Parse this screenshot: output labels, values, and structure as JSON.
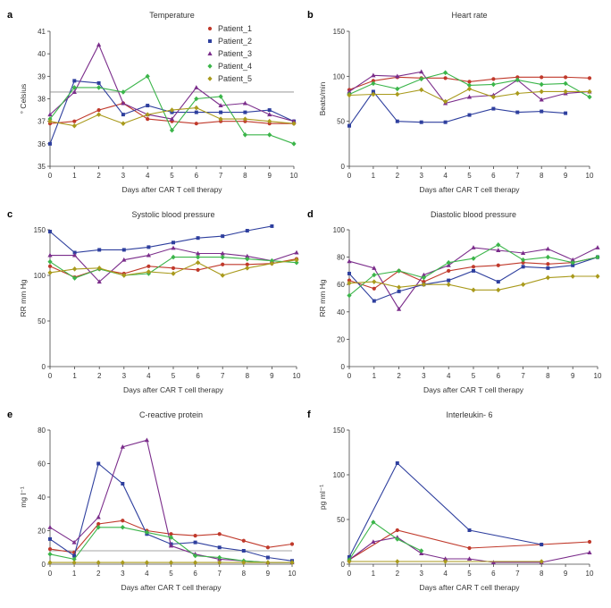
{
  "legend": {
    "entries": [
      "Patient_1",
      "Patient_2",
      "Patient_3",
      "Patient_4",
      "Patient_5"
    ],
    "colors": [
      "#c0392b",
      "#2e3f9e",
      "#7b2d8b",
      "#3bb54a",
      "#a99a1c"
    ],
    "markers": [
      "circle",
      "square",
      "triangle",
      "diamond",
      "diamond"
    ]
  },
  "chart_data": [
    {
      "id": "a",
      "letter": "a",
      "type": "line",
      "title": "Temperature",
      "xlabel": "Days after CAR T cell therapy",
      "ylabel": "° Celsius",
      "xlim": [
        0,
        10
      ],
      "ylim": [
        35,
        41
      ],
      "xticks": [
        0,
        1,
        2,
        3,
        4,
        5,
        6,
        7,
        8,
        9,
        10
      ],
      "yticks": [
        35,
        36,
        37,
        38,
        39,
        40,
        41
      ],
      "threshold": 38.3,
      "series": [
        {
          "name": "Patient_1",
          "x": [
            0,
            1,
            2,
            3,
            4,
            5,
            6,
            7,
            8,
            9,
            10
          ],
          "values": [
            36.9,
            37.0,
            37.5,
            37.8,
            37.1,
            37.0,
            36.9,
            37.0,
            37.0,
            36.9,
            36.9
          ]
        },
        {
          "name": "Patient_2",
          "x": [
            0,
            1,
            2,
            3,
            4,
            5,
            6,
            7,
            8,
            9,
            10
          ],
          "values": [
            36.0,
            38.8,
            38.7,
            37.3,
            37.7,
            37.4,
            37.4,
            37.4,
            37.4,
            37.5,
            37.0
          ]
        },
        {
          "name": "Patient_3",
          "x": [
            0,
            1,
            2,
            3,
            4,
            5,
            6,
            7,
            8,
            9,
            10
          ],
          "values": [
            37.3,
            38.3,
            40.4,
            37.8,
            37.3,
            37.1,
            38.5,
            37.7,
            37.8,
            37.3,
            37.0
          ]
        },
        {
          "name": "Patient_4",
          "x": [
            0,
            1,
            2,
            3,
            4,
            5,
            6,
            7,
            8,
            9,
            10
          ],
          "values": [
            37.1,
            38.5,
            38.5,
            38.3,
            39.0,
            36.6,
            38.0,
            38.1,
            36.4,
            36.4,
            36.0
          ]
        },
        {
          "name": "Patient_5",
          "x": [
            0,
            1,
            2,
            3,
            4,
            5,
            6,
            7,
            8,
            9,
            10
          ],
          "values": [
            37.0,
            36.8,
            37.3,
            36.9,
            37.3,
            37.5,
            37.6,
            37.1,
            37.1,
            37.0,
            36.9
          ]
        }
      ]
    },
    {
      "id": "b",
      "letter": "b",
      "type": "line",
      "title": "Heart rate",
      "xlabel": "Days after CAR T cell therapy",
      "ylabel": "Beats/min",
      "xlim": [
        0,
        10
      ],
      "ylim": [
        0,
        150
      ],
      "xticks": [
        0,
        1,
        2,
        3,
        4,
        5,
        6,
        7,
        8,
        9,
        10
      ],
      "yticks": [
        0,
        50,
        100,
        150
      ],
      "series": [
        {
          "name": "Patient_1",
          "x": [
            0,
            1,
            2,
            3,
            4,
            5,
            6,
            7,
            8,
            9,
            10
          ],
          "values": [
            85,
            95,
            99,
            98,
            98,
            94,
            97,
            99,
            99,
            99,
            98
          ]
        },
        {
          "name": "Patient_2",
          "x": [
            0,
            1,
            2,
            3,
            4,
            5,
            6,
            7,
            8,
            9
          ],
          "values": [
            45,
            83,
            50,
            49,
            49,
            57,
            64,
            60,
            61,
            59
          ]
        },
        {
          "name": "Patient_3",
          "x": [
            0,
            1,
            2,
            3,
            4,
            5,
            6,
            7,
            8,
            9,
            10
          ],
          "values": [
            83,
            101,
            100,
            105,
            70,
            77,
            79,
            96,
            74,
            81,
            83
          ]
        },
        {
          "name": "Patient_4",
          "x": [
            0,
            1,
            2,
            3,
            4,
            5,
            6,
            7,
            8,
            9,
            10
          ],
          "values": [
            80,
            92,
            86,
            97,
            104,
            90,
            91,
            96,
            91,
            92,
            77
          ]
        },
        {
          "name": "Patient_5",
          "x": [
            0,
            1,
            2,
            3,
            4,
            5,
            6,
            7,
            8,
            9,
            10
          ],
          "values": [
            79,
            80,
            80,
            85,
            72,
            86,
            77,
            81,
            83,
            83,
            83
          ]
        }
      ]
    },
    {
      "id": "c",
      "letter": "c",
      "type": "line",
      "title": "Systolic blood pressure",
      "xlabel": "Days after CAR T cell therapy",
      "ylabel": "RR mm Hg",
      "xlim": [
        0,
        10
      ],
      "ylim": [
        0,
        150
      ],
      "xticks": [
        0,
        1,
        2,
        3,
        4,
        5,
        6,
        7,
        8,
        9,
        10
      ],
      "yticks": [
        0,
        50,
        100,
        150
      ],
      "series": [
        {
          "name": "Patient_1",
          "x": [
            0,
            1,
            2,
            3,
            4,
            5,
            6,
            7,
            8,
            9,
            10
          ],
          "values": [
            110,
            98,
            107,
            102,
            110,
            108,
            106,
            112,
            112,
            113,
            118
          ]
        },
        {
          "name": "Patient_2",
          "x": [
            0,
            1,
            2,
            3,
            4,
            5,
            6,
            7,
            8,
            9
          ],
          "values": [
            148,
            125,
            128,
            128,
            131,
            136,
            141,
            143,
            149,
            154
          ]
        },
        {
          "name": "Patient_3",
          "x": [
            0,
            1,
            2,
            3,
            4,
            5,
            6,
            7,
            8,
            9,
            10
          ],
          "values": [
            122,
            122,
            93,
            117,
            122,
            130,
            124,
            124,
            121,
            116,
            125
          ]
        },
        {
          "name": "Patient_4",
          "x": [
            0,
            1,
            2,
            3,
            4,
            5,
            6,
            7,
            8,
            9,
            10
          ],
          "values": [
            115,
            97,
            107,
            100,
            102,
            120,
            120,
            120,
            118,
            116,
            114
          ]
        },
        {
          "name": "Patient_5",
          "x": [
            0,
            1,
            2,
            3,
            4,
            5,
            6,
            7,
            8,
            9,
            10
          ],
          "values": [
            103,
            107,
            108,
            100,
            104,
            102,
            114,
            100,
            108,
            113,
            117
          ]
        }
      ]
    },
    {
      "id": "d",
      "letter": "d",
      "type": "line",
      "title": "Diastolic blood pressure",
      "xlabel": "Days after CAR T cell therapy",
      "ylabel": "RR mm Hg",
      "xlim": [
        0,
        10
      ],
      "ylim": [
        0,
        100
      ],
      "xticks": [
        0,
        1,
        2,
        3,
        4,
        5,
        6,
        7,
        8,
        9,
        10
      ],
      "yticks": [
        0,
        20,
        40,
        60,
        80,
        100
      ],
      "series": [
        {
          "name": "Patient_1",
          "x": [
            0,
            1,
            2,
            3,
            4,
            5,
            6,
            7,
            8,
            9,
            10
          ],
          "values": [
            63,
            57,
            70,
            62,
            70,
            73,
            74,
            76,
            75,
            76,
            80
          ]
        },
        {
          "name": "Patient_2",
          "x": [
            0,
            1,
            2,
            3,
            4,
            5,
            6,
            7,
            8,
            9,
            10
          ],
          "values": [
            68,
            48,
            55,
            60,
            63,
            70,
            62,
            73,
            72,
            74,
            80
          ]
        },
        {
          "name": "Patient_3",
          "x": [
            0,
            1,
            2,
            3,
            4,
            5,
            6,
            7,
            8,
            9,
            10
          ],
          "values": [
            77,
            72,
            42,
            67,
            74,
            87,
            85,
            83,
            86,
            78,
            87
          ]
        },
        {
          "name": "Patient_4",
          "x": [
            0,
            1,
            2,
            3,
            4,
            5,
            6,
            7,
            8,
            9,
            10
          ],
          "values": [
            52,
            67,
            70,
            65,
            76,
            79,
            89,
            78,
            80,
            76,
            80
          ]
        },
        {
          "name": "Patient_5",
          "x": [
            0,
            1,
            2,
            3,
            4,
            5,
            6,
            7,
            8,
            9,
            10
          ],
          "values": [
            61,
            62,
            58,
            60,
            60,
            56,
            56,
            60,
            65,
            66,
            66
          ]
        }
      ]
    },
    {
      "id": "e",
      "letter": "e",
      "type": "line",
      "title": "C-reactive protein",
      "xlabel": "Days after CAR T cell therapy",
      "ylabel": "mg l⁻¹",
      "xlim": [
        0,
        10
      ],
      "ylim": [
        0,
        80
      ],
      "xticks": [
        0,
        1,
        2,
        3,
        4,
        5,
        6,
        7,
        8,
        9,
        10
      ],
      "yticks": [
        0,
        20,
        40,
        60,
        80
      ],
      "threshold": 8,
      "series": [
        {
          "name": "Patient_1",
          "x": [
            0,
            1,
            2,
            3,
            4,
            5,
            6,
            7,
            8,
            9,
            10
          ],
          "values": [
            9,
            7,
            24,
            26,
            20,
            18,
            17,
            18,
            14,
            10,
            12
          ]
        },
        {
          "name": "Patient_2",
          "x": [
            0,
            1,
            2,
            3,
            4,
            5,
            6,
            7,
            8,
            9,
            10
          ],
          "values": [
            15,
            5,
            60,
            48,
            18,
            12,
            13,
            10,
            8,
            4,
            2
          ]
        },
        {
          "name": "Patient_3",
          "x": [
            0,
            1,
            2,
            3,
            4,
            5,
            6,
            7,
            8,
            9,
            10
          ],
          "values": [
            22,
            13,
            28,
            70,
            74,
            11,
            6,
            3,
            2,
            1,
            1
          ]
        },
        {
          "name": "Patient_4",
          "x": [
            0,
            1,
            2,
            3,
            4,
            5,
            6,
            7,
            8,
            9,
            10
          ],
          "values": [
            6,
            3,
            22,
            22,
            19,
            16,
            5,
            4,
            2,
            1,
            1
          ]
        },
        {
          "name": "Patient_5",
          "x": [
            0,
            1,
            2,
            3,
            4,
            5,
            6,
            7,
            8,
            9,
            10
          ],
          "values": [
            1,
            1,
            1,
            1,
            1,
            1,
            1,
            1,
            1,
            1,
            1
          ]
        }
      ]
    },
    {
      "id": "f",
      "letter": "f",
      "type": "line",
      "title": "Interleukin- 6",
      "xlabel": "Days after CAR T cell therapy",
      "ylabel": "pg ml⁻¹",
      "xlim": [
        0,
        10
      ],
      "ylim": [
        0,
        150
      ],
      "xticks": [
        0,
        1,
        2,
        3,
        4,
        5,
        6,
        7,
        8,
        9,
        10
      ],
      "yticks": [
        0,
        50,
        100,
        150
      ],
      "series": [
        {
          "name": "Patient_1",
          "x": [
            0,
            2,
            5,
            8,
            10
          ],
          "values": [
            5,
            38,
            18,
            22,
            25
          ]
        },
        {
          "name": "Patient_2",
          "x": [
            0,
            2,
            5,
            8
          ],
          "values": [
            8,
            113,
            38,
            22
          ]
        },
        {
          "name": "Patient_3",
          "x": [
            0,
            1,
            2,
            3,
            4,
            5,
            6,
            8,
            10
          ],
          "values": [
            5,
            25,
            30,
            12,
            6,
            6,
            2,
            2,
            13
          ]
        },
        {
          "name": "Patient_4",
          "x": [
            0,
            1,
            2,
            3
          ],
          "values": [
            5,
            47,
            28,
            15
          ]
        },
        {
          "name": "Patient_5",
          "x": [
            0,
            2,
            4,
            8
          ],
          "values": [
            3,
            3,
            3,
            3
          ]
        }
      ]
    }
  ]
}
